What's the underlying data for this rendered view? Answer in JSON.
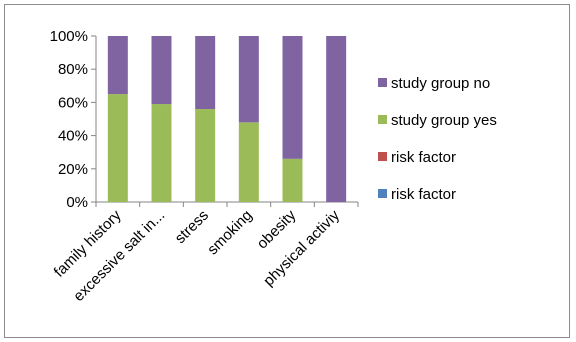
{
  "chart_data": {
    "type": "bar",
    "stacked": true,
    "percent_stacked": true,
    "categories": [
      "family history",
      "excessive salt in...",
      "stress",
      "smoking",
      "obesity",
      "physical activiy"
    ],
    "series": [
      {
        "name": "study group yes",
        "color": "#9bbb59",
        "values": [
          65,
          59,
          56,
          48,
          26,
          0
        ]
      },
      {
        "name": "study group no",
        "color": "#8064a2",
        "values": [
          35,
          41,
          44,
          52,
          74,
          100
        ]
      }
    ],
    "legend": [
      {
        "name": "study group no",
        "color": "#8064a2"
      },
      {
        "name": "study group yes",
        "color": "#9bbb59"
      },
      {
        "name": "risk factor",
        "color": "#c0504d"
      },
      {
        "name": "risk factor",
        "color": "#4f81bd"
      }
    ],
    "yticks": [
      "0%",
      "20%",
      "40%",
      "60%",
      "80%",
      "100%"
    ],
    "ylim": [
      0,
      100
    ],
    "grid": false,
    "legend_position": "right"
  }
}
